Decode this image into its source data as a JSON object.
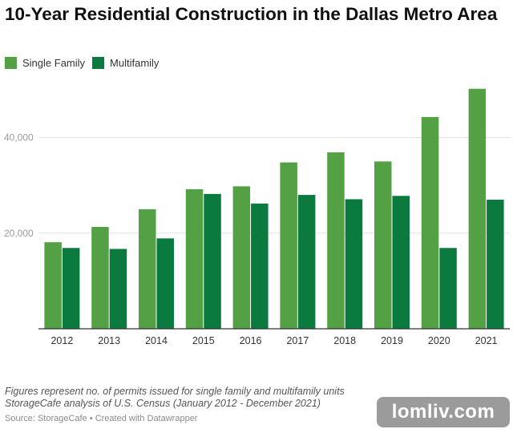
{
  "title": "10-Year Residential Construction in the Dallas Metro Area",
  "footer": {
    "note_line1": "Figures represent no. of permits issued for single family and multifamily units",
    "note_line2": "StorageCafe analysis of U.S. Census (January 2012 - December 2021)",
    "source": "Source: StorageCafe • Created with Datawrapper"
  },
  "watermark": "lomliv.com",
  "chart_data": {
    "type": "bar",
    "title": "10-Year Residential Construction in the Dallas Metro Area",
    "xlabel": "",
    "ylabel": "",
    "categories": [
      "2012",
      "2013",
      "2014",
      "2015",
      "2016",
      "2017",
      "2018",
      "2019",
      "2020",
      "2021"
    ],
    "series": [
      {
        "name": "Single Family",
        "color": "#53a144",
        "values": [
          18100,
          21300,
          25000,
          29200,
          29800,
          34800,
          36900,
          35000,
          44300,
          50200
        ]
      },
      {
        "name": "Multifamily",
        "color": "#0a7a3e",
        "values": [
          16900,
          16700,
          18900,
          28200,
          26200,
          28000,
          27100,
          27800,
          16900,
          27000
        ]
      }
    ],
    "ylim": [
      0,
      52000
    ],
    "yticks": [
      20000,
      40000
    ],
    "ytick_labels": [
      "20,000",
      "40,000"
    ],
    "grid": true,
    "legend": "top-left"
  }
}
